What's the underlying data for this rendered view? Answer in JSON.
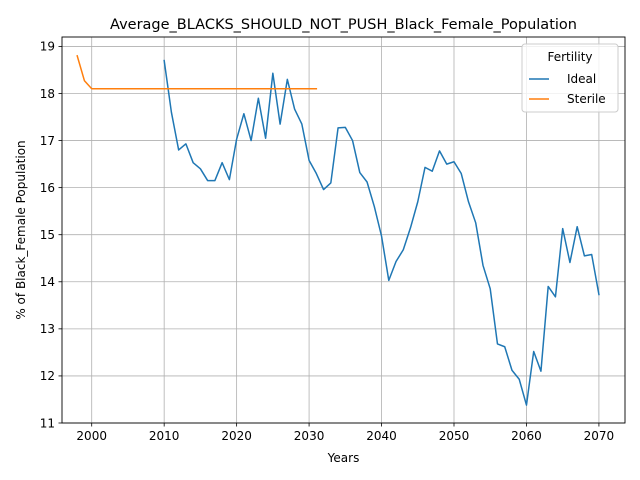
{
  "chart_data": {
    "type": "line",
    "title": "Average_BLACKS_SHOULD_NOT_PUSH_Black_Female_Population",
    "xlabel": "Years",
    "ylabel": "% of Black_Female Population",
    "xlim": [
      1995.9,
      2073.6
    ],
    "ylim": [
      11,
      19.2
    ],
    "xticks": [
      2000,
      2010,
      2020,
      2030,
      2040,
      2050,
      2060,
      2070
    ],
    "yticks": [
      11,
      12,
      13,
      14,
      15,
      16,
      17,
      18,
      19
    ],
    "grid": true,
    "legend": {
      "title": "Fertility",
      "placement": "top-right"
    },
    "series": [
      {
        "name": "Ideal",
        "color": "#1f77b4",
        "x": [
          2010,
          2011,
          2012,
          2013,
          2014,
          2015,
          2016,
          2017,
          2018,
          2019,
          2020,
          2021,
          2022,
          2023,
          2024,
          2025,
          2026,
          2027,
          2028,
          2029,
          2030,
          2031,
          2032,
          2033,
          2034,
          2035,
          2036,
          2037,
          2038,
          2039,
          2040,
          2041,
          2042,
          2043,
          2044,
          2045,
          2046,
          2047,
          2048,
          2049,
          2050,
          2051,
          2052,
          2053,
          2054,
          2055,
          2056,
          2057,
          2058,
          2059,
          2060,
          2061,
          2062,
          2063,
          2064,
          2065,
          2066,
          2067,
          2068,
          2069,
          2070
        ],
        "y": [
          18.7,
          17.6,
          16.8,
          16.93,
          16.53,
          16.4,
          16.15,
          16.15,
          16.53,
          16.17,
          17.03,
          17.57,
          17.0,
          17.9,
          17.05,
          18.43,
          17.35,
          18.3,
          17.67,
          17.35,
          16.58,
          16.3,
          15.96,
          16.1,
          17.27,
          17.28,
          17.0,
          16.32,
          16.12,
          15.6,
          14.97,
          14.03,
          14.43,
          14.68,
          15.15,
          15.7,
          16.43,
          16.35,
          16.78,
          16.5,
          16.55,
          16.3,
          15.7,
          15.25,
          14.35,
          13.85,
          12.68,
          12.62,
          12.12,
          11.93,
          11.38,
          12.52,
          12.1,
          13.9,
          13.68,
          15.13,
          14.41,
          15.17,
          14.55,
          14.58,
          13.73
        ]
      },
      {
        "name": "Sterile",
        "color": "#ff7f0e",
        "x": [
          1998,
          1999,
          2000,
          2001,
          2002,
          2003,
          2004,
          2005,
          2006,
          2007,
          2008,
          2009,
          2010,
          2011,
          2012,
          2013,
          2014,
          2015,
          2016,
          2017,
          2018,
          2019,
          2020,
          2021,
          2022,
          2023,
          2024,
          2025,
          2026,
          2027,
          2028,
          2029,
          2030,
          2031
        ],
        "y": [
          18.8,
          18.27,
          18.1,
          18.1,
          18.1,
          18.1,
          18.1,
          18.1,
          18.1,
          18.1,
          18.1,
          18.1,
          18.1,
          18.1,
          18.1,
          18.1,
          18.1,
          18.1,
          18.1,
          18.1,
          18.1,
          18.1,
          18.1,
          18.1,
          18.1,
          18.1,
          18.1,
          18.1,
          18.1,
          18.1,
          18.1,
          18.1,
          18.1,
          18.1
        ]
      }
    ]
  }
}
